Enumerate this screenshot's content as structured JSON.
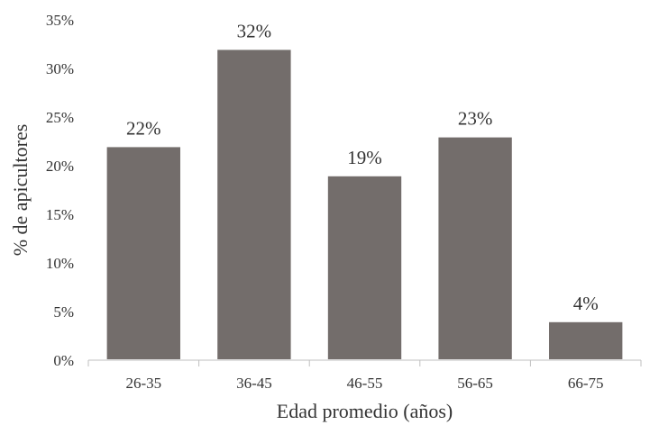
{
  "chart_data": {
    "type": "bar",
    "title": "",
    "xlabel": "Edad promedio (años)",
    "ylabel": "% de apicultores",
    "categories": [
      "26-35",
      "36-45",
      "46-55",
      "56-65",
      "66-75"
    ],
    "values": [
      22,
      32,
      19,
      23,
      4
    ],
    "data_labels": [
      "22%",
      "32%",
      "19%",
      "23%",
      "4%"
    ],
    "ylim": [
      0,
      35
    ],
    "yticks": [
      0,
      5,
      10,
      15,
      20,
      25,
      30,
      35
    ],
    "ytick_labels": [
      "0%",
      "5%",
      "10%",
      "15%",
      "20%",
      "25%",
      "30%",
      "35%"
    ],
    "grid": false,
    "legend": "none",
    "colors": {
      "bar": "#736d6b",
      "bar_edge": "#ffffff",
      "axis": "#bfbfbf",
      "text": "#333333"
    }
  }
}
